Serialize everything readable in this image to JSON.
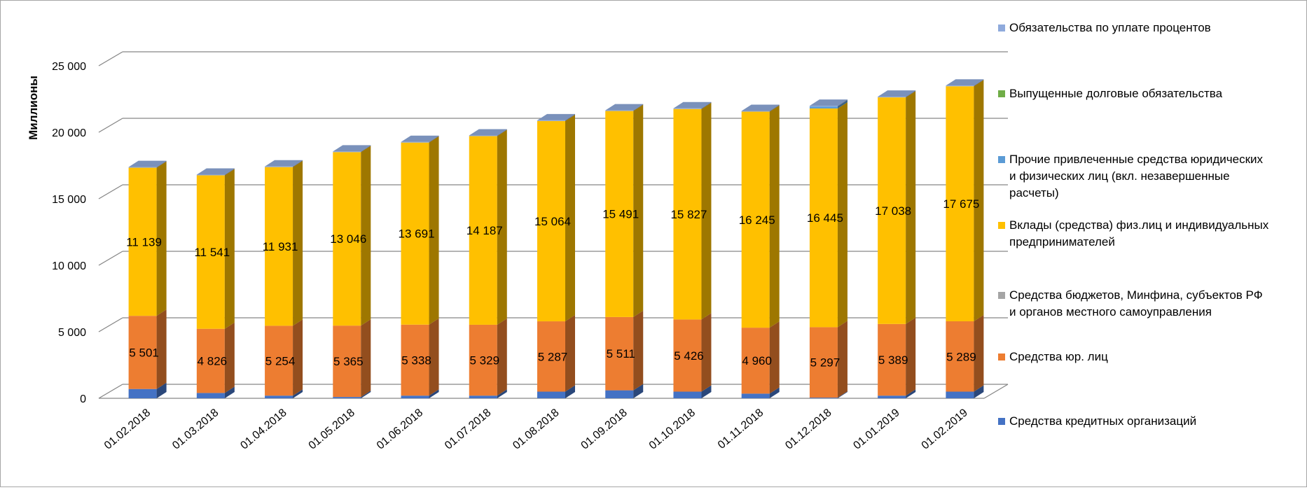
{
  "chart_data": {
    "type": "bar",
    "stacked": true,
    "three_d": true,
    "ylabel": "Миллионы",
    "ylim": [
      0,
      25000
    ],
    "yticks": [
      "0",
      "5 000",
      "10 000",
      "15 000",
      "20 000",
      "25 000"
    ],
    "grid": true,
    "legend_position": "right",
    "categories": [
      "01.02.2018",
      "01.03.2018",
      "01.04.2018",
      "01.05.2018",
      "01.06.2018",
      "01.07.2018",
      "01.08.2018",
      "01.09.2018",
      "01.10.2018",
      "01.11.2018",
      "01.12.2018",
      "01.01.2019",
      "01.02.2019"
    ],
    "series": [
      {
        "name": "Средства кредитных организаций",
        "color": "#4472c4",
        "values": [
          700,
          400,
          200,
          100,
          200,
          200,
          500,
          600,
          500,
          350,
          50,
          200,
          500
        ],
        "labels": [
          "",
          "",
          "",
          "",
          "",
          "",
          "",
          "",
          "",
          "",
          "",
          "",
          ""
        ]
      },
      {
        "name": "Средства юр. лиц",
        "color": "#ed7d31",
        "values": [
          5501,
          4826,
          5254,
          5365,
          5338,
          5329,
          5287,
          5511,
          5426,
          4960,
          5297,
          5389,
          5289
        ],
        "labels": [
          "5 501",
          "4 826",
          "5 254",
          "5 365",
          "5 338",
          "5 329",
          "5 287",
          "5 511",
          "5 426",
          "4 960",
          "5 297",
          "5 389",
          "5 289"
        ]
      },
      {
        "name": "Средства бюджетов, Минфина, субъектов РФ и органов местного самоуправления",
        "color": "#a5a5a5",
        "values": [
          0,
          0,
          0,
          0,
          0,
          0,
          0,
          0,
          0,
          0,
          0,
          0,
          0
        ],
        "labels": [
          "",
          "",
          "",
          "",
          "",
          "",
          "",
          "",
          "",
          "",
          "",
          "",
          ""
        ]
      },
      {
        "name": "Вклады (средства) физ.лиц и индивидуальных предпринимателей",
        "color": "#ffc000",
        "values": [
          11139,
          11541,
          11931,
          13046,
          13691,
          14187,
          15064,
          15491,
          15827,
          16245,
          16445,
          17038,
          17675
        ],
        "labels": [
          "11 139",
          "11 541",
          "11 931",
          "13 046",
          "13 691",
          "14 187",
          "15 064",
          "15 491",
          "15 827",
          "16 245",
          "16 445",
          "17 038",
          "17 675"
        ]
      },
      {
        "name": "Прочие привлеченные средства юридических и физических лиц (вкл. незавершенные расчеты)",
        "color": "#5b9bd5",
        "values": [
          0,
          0,
          0,
          0,
          0,
          0,
          0,
          0,
          0,
          0,
          150,
          0,
          0
        ],
        "labels": [
          "",
          "",
          "",
          "",
          "",
          "",
          "",
          "",
          "",
          "",
          "",
          "",
          ""
        ]
      },
      {
        "name": "Выпущенные долговые обязательства",
        "color": "#70ad47",
        "values": [
          0,
          0,
          0,
          0,
          0,
          0,
          0,
          0,
          0,
          0,
          0,
          0,
          0
        ],
        "labels": [
          "",
          "",
          "",
          "",
          "",
          "",
          "",
          "",
          "",
          "",
          "",
          "",
          ""
        ]
      },
      {
        "name": "Обязательства по уплате процентов",
        "color": "#8faadc",
        "values": [
          50,
          50,
          50,
          50,
          50,
          50,
          50,
          50,
          50,
          50,
          50,
          50,
          50
        ],
        "labels": [
          "",
          "",
          "",
          "",
          "",
          "",
          "",
          "",
          "",
          "",
          "",
          "",
          ""
        ]
      }
    ],
    "legend": [
      {
        "lines": [
          "Обязательства по уплате процентов"
        ],
        "color": "#8faadc"
      },
      {
        "lines": [
          "Выпущенные долговые обязательства"
        ],
        "color": "#70ad47"
      },
      {
        "lines": [
          "Прочие привлеченные средства юридических",
          "и физических лиц (вкл. незавершенные",
          "расчеты)"
        ],
        "color": "#5b9bd5"
      },
      {
        "lines": [
          "Вклады (средства) физ.лиц и индивидуальных",
          "предпринимателей"
        ],
        "color": "#ffc000"
      },
      {
        "lines": [
          "Средства бюджетов, Минфина, субъектов РФ",
          "и органов местного самоуправления"
        ],
        "color": "#a5a5a5"
      },
      {
        "lines": [
          "Средства юр. лиц"
        ],
        "color": "#ed7d31"
      },
      {
        "lines": [
          "Средства кредитных организаций"
        ],
        "color": "#4472c4"
      }
    ]
  }
}
